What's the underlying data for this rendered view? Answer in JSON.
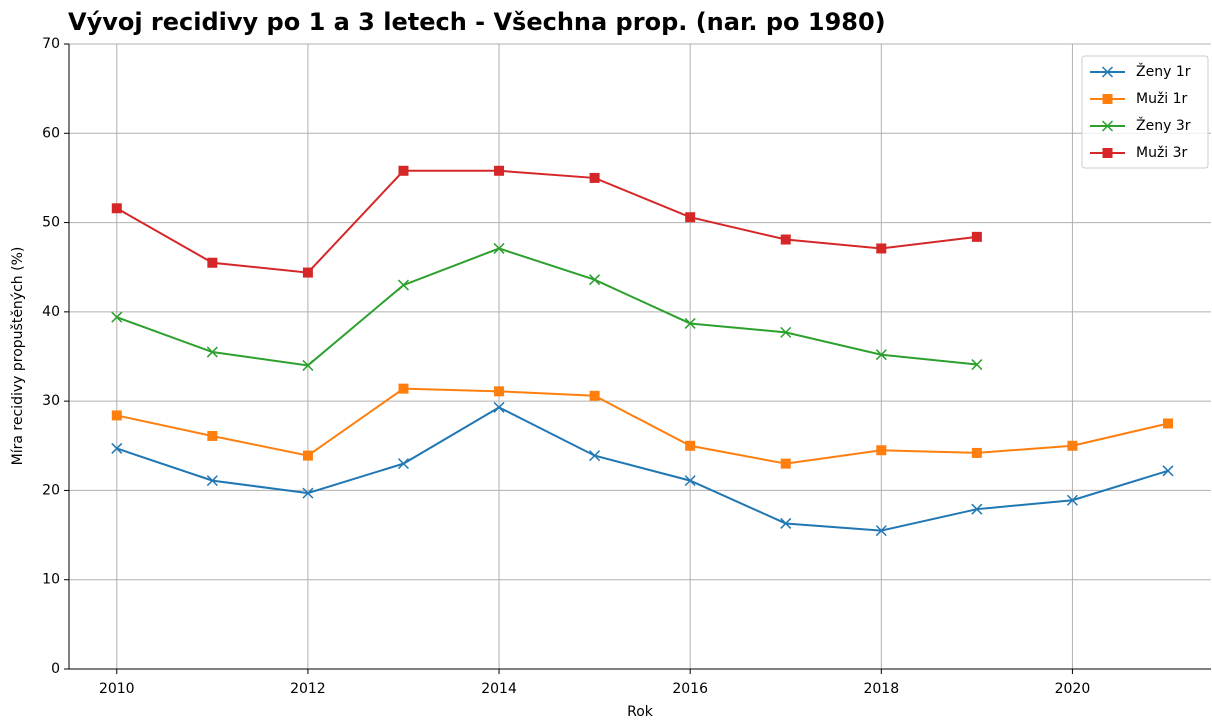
{
  "chart_data": {
    "type": "line",
    "title": "Vývoj recidivy po 1 a 3 letech - Všechna prop. (nar. po 1980)",
    "x_label": "Rok",
    "y_label": "Míra recidivy propuštěných (%)",
    "x": [
      2010,
      2011,
      2012,
      2013,
      2014,
      2015,
      2016,
      2017,
      2018,
      2019,
      2020,
      2021
    ],
    "series": [
      {
        "name": "Ženy 1r",
        "color": "#1f77b4",
        "marker": "x",
        "values": [
          24.7,
          21.1,
          19.7,
          23.0,
          29.3,
          23.9,
          21.1,
          16.3,
          15.5,
          17.9,
          18.9,
          22.2
        ]
      },
      {
        "name": "Muži 1r",
        "color": "#ff7f0e",
        "marker": "s",
        "values": [
          28.4,
          26.1,
          23.9,
          31.4,
          31.1,
          30.6,
          25.0,
          23.0,
          24.5,
          24.2,
          25.0,
          27.5
        ]
      },
      {
        "name": "Ženy 3r",
        "color": "#2ca02c",
        "marker": "x",
        "values": [
          39.4,
          35.5,
          34.0,
          43.0,
          47.1,
          43.6,
          38.7,
          37.7,
          35.2,
          34.1,
          null,
          null
        ]
      },
      {
        "name": "Muži 3r",
        "color": "#d62728",
        "marker": "s",
        "values": [
          51.6,
          45.5,
          44.4,
          55.8,
          55.8,
          55.0,
          50.6,
          48.1,
          47.1,
          48.4,
          null,
          null
        ]
      }
    ],
    "xlim": [
      2009.5,
      2021.45
    ],
    "xticks": [
      2010,
      2012,
      2014,
      2016,
      2018,
      2020
    ],
    "ylim": [
      0,
      70
    ],
    "yticks": [
      0,
      10,
      20,
      30,
      40,
      50,
      60,
      70
    ],
    "grid": true,
    "legend": "upper right"
  }
}
